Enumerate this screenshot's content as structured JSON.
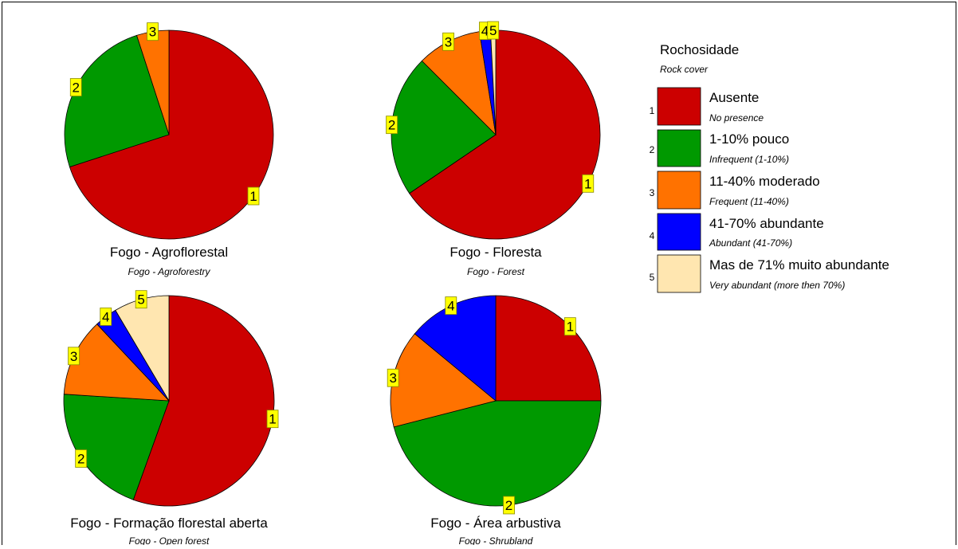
{
  "colors": {
    "1": "#cc0000",
    "2": "#009900",
    "3": "#ff7200",
    "4": "#0000ff",
    "5": "#ffe6b0"
  },
  "legend": {
    "title": "Rochosidade",
    "subtitle": "Rock cover",
    "items": [
      {
        "id": "1",
        "number": "1",
        "label": "Ausente",
        "sublabel": "No presence"
      },
      {
        "id": "2",
        "number": "2",
        "label": "1-10% pouco",
        "sublabel": "Infrequent (1-10%)"
      },
      {
        "id": "3",
        "number": "3",
        "label": "11-40% moderado",
        "sublabel": "Frequent (11-40%)"
      },
      {
        "id": "4",
        "number": "4",
        "label": "41-70% abundante",
        "sublabel": "Abundant (41-70%)"
      },
      {
        "id": "5",
        "number": "5",
        "label": "Mas de 71% muito abundante",
        "sublabel": "Very abundant (more then 70%)"
      }
    ]
  },
  "chart_data": [
    {
      "type": "pie",
      "title": "Fogo - Agroflorestal",
      "subtitle": "Fogo - Agroforestry",
      "slices": [
        {
          "id": "1",
          "label": "1",
          "value": 70.0
        },
        {
          "id": "2",
          "label": "2",
          "value": 25.0
        },
        {
          "id": "3",
          "label": "3",
          "value": 5.0
        }
      ]
    },
    {
      "type": "pie",
      "title": "Fogo - Floresta",
      "subtitle": "Fogo - Forest",
      "slices": [
        {
          "id": "1",
          "label": "1",
          "value": 65.5
        },
        {
          "id": "2",
          "label": "2",
          "value": 22.0
        },
        {
          "id": "3",
          "label": "3",
          "value": 10.0
        },
        {
          "id": "4",
          "label": "4",
          "value": 1.7
        },
        {
          "id": "5",
          "label": "5",
          "value": 0.8
        }
      ]
    },
    {
      "type": "pie",
      "title": "Fogo - Formação florestal aberta",
      "subtitle": "Fogo - Open forest",
      "slices": [
        {
          "id": "1",
          "label": "1",
          "value": 55.5
        },
        {
          "id": "2",
          "label": "2",
          "value": 20.5
        },
        {
          "id": "3",
          "label": "3",
          "value": 12.0
        },
        {
          "id": "4",
          "label": "4",
          "value": 3.5
        },
        {
          "id": "5",
          "label": "5",
          "value": 8.5
        }
      ]
    },
    {
      "type": "pie",
      "title": "Fogo - Área arbustiva",
      "subtitle": "Fogo - Shrubland",
      "slices": [
        {
          "id": "1",
          "label": "1",
          "value": 25.0
        },
        {
          "id": "2",
          "label": "2",
          "value": 46.0
        },
        {
          "id": "3",
          "label": "3",
          "value": 15.0
        },
        {
          "id": "4",
          "label": "4",
          "value": 14.0
        }
      ]
    }
  ]
}
